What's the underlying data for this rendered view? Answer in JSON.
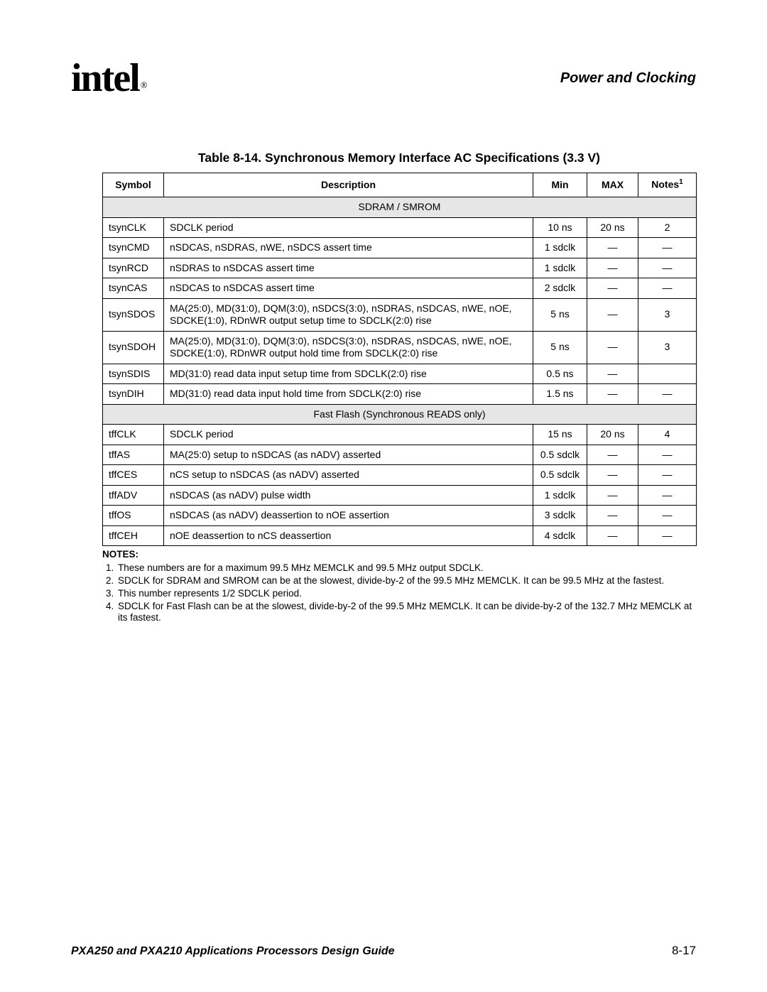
{
  "header": {
    "logo_text": "intel",
    "logo_reg": "®",
    "section": "Power and Clocking"
  },
  "table": {
    "caption": "Table 8-14. Synchronous Memory Interface AC Specifications (3.3 V)",
    "columns": {
      "symbol": "Symbol",
      "description": "Description",
      "min": "Min",
      "max": "MAX",
      "notes": "Notes",
      "notes_sup": "1"
    },
    "section1": "SDRAM / SMROM",
    "rows1": [
      {
        "sym": "tsynCLK",
        "desc": "SDCLK period",
        "min": "10 ns",
        "max": "20 ns",
        "notes": "2"
      },
      {
        "sym": "tsynCMD",
        "desc": "nSDCAS, nSDRAS, nWE, nSDCS assert time",
        "min": "1 sdclk",
        "max": "—",
        "notes": "—"
      },
      {
        "sym": "tsynRCD",
        "desc": "nSDRAS to nSDCAS assert time",
        "min": "1 sdclk",
        "max": "—",
        "notes": "—"
      },
      {
        "sym": "tsynCAS",
        "desc": "nSDCAS to nSDCAS assert time",
        "min": "2 sdclk",
        "max": "—",
        "notes": "—"
      },
      {
        "sym": "tsynSDOS",
        "desc": "MA(25:0), MD(31:0), DQM(3:0), nSDCS(3:0), nSDRAS, nSDCAS, nWE, nOE, SDCKE(1:0), RDnWR output setup time to SDCLK(2:0) rise",
        "min": "5 ns",
        "max": "—",
        "notes": "3"
      },
      {
        "sym": "tsynSDOH",
        "desc": "MA(25:0), MD(31:0), DQM(3:0), nSDCS(3:0), nSDRAS, nSDCAS, nWE, nOE, SDCKE(1:0), RDnWR output hold time from SDCLK(2:0) rise",
        "min": "5 ns",
        "max": "—",
        "notes": "3"
      },
      {
        "sym": "tsynSDIS",
        "desc": "MD(31:0) read data input setup time from SDCLK(2:0) rise",
        "min": "0.5 ns",
        "max": "—",
        "notes": ""
      },
      {
        "sym": "tsynDIH",
        "desc": "MD(31:0) read data input hold time from SDCLK(2:0) rise",
        "min": "1.5 ns",
        "max": "—",
        "notes": "—"
      }
    ],
    "section2": "Fast Flash (Synchronous READS only)",
    "rows2": [
      {
        "sym": "tffCLK",
        "desc": "SDCLK period",
        "min": "15 ns",
        "max": "20 ns",
        "notes": "4"
      },
      {
        "sym": "tffAS",
        "desc": "MA(25:0) setup to nSDCAS (as nADV) asserted",
        "min": "0.5 sdclk",
        "max": "—",
        "notes": "—"
      },
      {
        "sym": "tffCES",
        "desc": "nCS setup to nSDCAS (as nADV) asserted",
        "min": "0.5 sdclk",
        "max": "—",
        "notes": "—"
      },
      {
        "sym": "tffADV",
        "desc": "nSDCAS (as nADV) pulse width",
        "min": "1 sdclk",
        "max": "—",
        "notes": "—"
      },
      {
        "sym": "tffOS",
        "desc": "nSDCAS (as nADV) deassertion to nOE assertion",
        "min": "3 sdclk",
        "max": "—",
        "notes": "—"
      },
      {
        "sym": "tffCEH",
        "desc": "nOE deassertion to nCS deassertion",
        "min": "4 sdclk",
        "max": "—",
        "notes": "—"
      }
    ]
  },
  "notes": {
    "heading": "NOTES:",
    "items": [
      "These numbers are for a maximum 99.5 MHz MEMCLK and 99.5 MHz output SDCLK.",
      "SDCLK for SDRAM and SMROM can be at the slowest, divide-by-2 of the 99.5 MHz MEMCLK. It can be 99.5 MHz at the fastest.",
      "This number represents 1/2 SDCLK period.",
      "SDCLK for Fast Flash can be at the slowest, divide-by-2 of the 99.5 MHz MEMCLK. It can be divide-by-2 of the 132.7 MHz MEMCLK at its fastest."
    ]
  },
  "footer": {
    "doc": "PXA250 and PXA210 Applications Processors Design Guide",
    "page": "8-17"
  }
}
